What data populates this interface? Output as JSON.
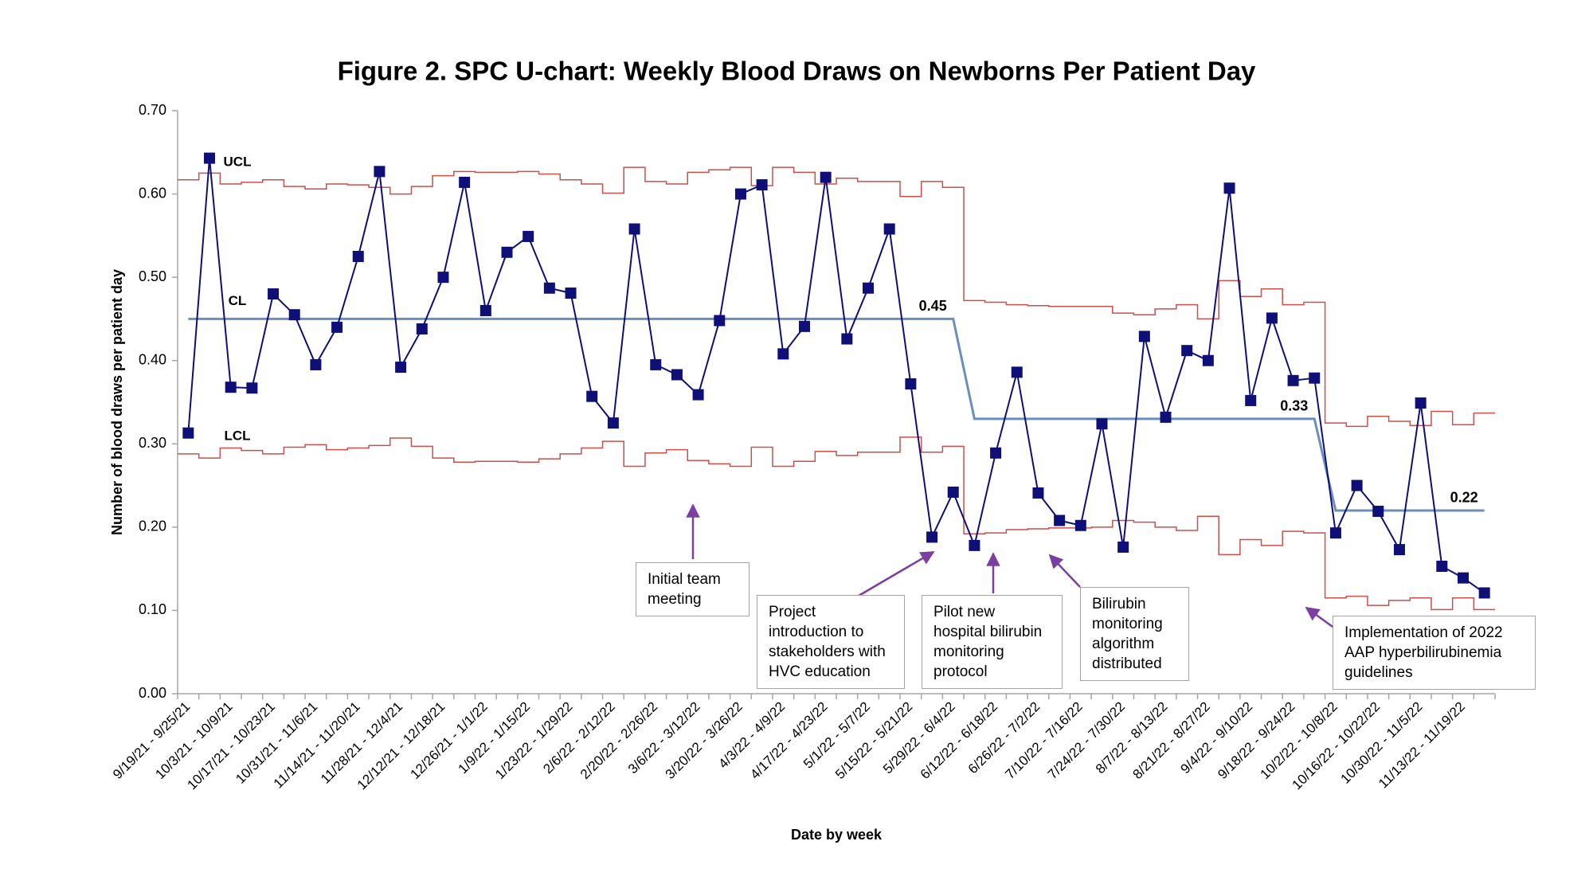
{
  "chart_data": {
    "type": "line",
    "title": "Figure 2. SPC U-chart: Weekly Blood Draws on Newborns Per Patient Day",
    "x_label": "Date by week",
    "y_label": "Number of blood draws per patient day",
    "categories": [
      "9/19/21 - 9/25/21",
      null,
      "10/3/21 - 10/9/21",
      null,
      "10/17/21 - 10/23/21",
      null,
      "10/31/21 - 11/6/21",
      null,
      "11/14/21 - 11/20/21",
      null,
      "11/28/21 - 12/4/21",
      null,
      "12/12/21 - 12/18/21",
      null,
      "12/26/21 - 1/1/22",
      null,
      "1/9/22 - 1/15/22",
      null,
      "1/23/22 - 1/29/22",
      null,
      "2/6/22 - 2/12/22",
      null,
      "2/20/22 - 2/26/22",
      null,
      "3/6/22 - 3/12/22",
      null,
      "3/20/22 - 3/26/22",
      null,
      "4/3/22 - 4/9/22",
      null,
      "4/17/22 - 4/23/22",
      null,
      "5/1/22 - 5/7/22",
      null,
      "5/15/22 - 5/21/22",
      null,
      "5/29/22 - 6/4/22",
      null,
      "6/12/22 - 6/18/22",
      null,
      "6/26/22 - 7/2/22",
      null,
      "7/10/22 - 7/16/22",
      null,
      "7/24/22 - 7/30/22",
      null,
      "8/7/22 - 8/13/22",
      null,
      "8/21/22 - 8/27/22",
      null,
      "9/4/22 - 9/10/22",
      null,
      "9/18/22 - 9/24/22",
      null,
      "10/2/22 - 10/8/22",
      null,
      "10/16/22 - 10/22/22",
      null,
      "10/30/22 - 11/5/22",
      null,
      "11/13/22 - 11/19/22",
      null
    ],
    "ylim": [
      0,
      0.7
    ],
    "yticks": [
      {
        "value": 0,
        "label": "0.00"
      },
      {
        "value": 0.1,
        "label": "0.10"
      },
      {
        "value": 0.2,
        "label": "0.20"
      },
      {
        "value": 0.3,
        "label": "0.30"
      },
      {
        "value": 0.4,
        "label": "0.40"
      },
      {
        "value": 0.5,
        "label": "0.50"
      },
      {
        "value": 0.6,
        "label": "0.60"
      },
      {
        "value": 0.7,
        "label": "0.70"
      }
    ],
    "grid": false,
    "series": [
      {
        "color": "#0f0f78",
        "style": "markers",
        "values": [
          0.313,
          0.643,
          0.368,
          0.367,
          0.48,
          0.455,
          0.395,
          0.44,
          0.525,
          0.627,
          0.392,
          0.438,
          0.5,
          0.614,
          0.46,
          0.53,
          0.549,
          0.487,
          0.481,
          0.357,
          0.325,
          0.558,
          0.395,
          0.383,
          0.359,
          0.448,
          0.6,
          0.611,
          0.408,
          0.441,
          0.62,
          0.426,
          0.487,
          0.558,
          0.372,
          0.188,
          0.242,
          0.178,
          0.289,
          0.386,
          0.241,
          0.208,
          0.202,
          0.324,
          0.176,
          0.429,
          0.332,
          0.412,
          0.4,
          0.607,
          0.352,
          0.451,
          0.376,
          0.379,
          0.193,
          0.25,
          0.219,
          0.173,
          0.349,
          0.153,
          0.139,
          0.121
        ]
      },
      {
        "name": "UCL",
        "color": "#c9504b",
        "style": "step",
        "values": [
          0.617,
          0.625,
          0.612,
          0.614,
          0.617,
          0.609,
          0.606,
          0.612,
          0.611,
          0.608,
          0.6,
          0.609,
          0.622,
          0.627,
          0.626,
          0.626,
          0.627,
          0.624,
          0.617,
          0.612,
          0.601,
          0.632,
          0.615,
          0.612,
          0.626,
          0.629,
          0.632,
          0.61,
          0.632,
          0.626,
          0.612,
          0.619,
          0.615,
          0.615,
          0.597,
          0.615,
          0.608,
          0.472,
          0.47,
          0.467,
          0.466,
          0.465,
          0.465,
          0.465,
          0.457,
          0.455,
          0.462,
          0.467,
          0.45,
          0.496,
          0.477,
          0.486,
          0.467,
          0.47,
          0.325,
          0.321,
          0.333,
          0.327,
          0.322,
          0.339,
          0.323,
          0.337
        ]
      },
      {
        "name": "CL",
        "color": "#6b8fbd",
        "style": "line",
        "segment_labels": [
          0.45,
          0.33,
          0.22
        ],
        "values": [
          0.45,
          0.45,
          0.45,
          0.45,
          0.45,
          0.45,
          0.45,
          0.45,
          0.45,
          0.45,
          0.45,
          0.45,
          0.45,
          0.45,
          0.45,
          0.45,
          0.45,
          0.45,
          0.45,
          0.45,
          0.45,
          0.45,
          0.45,
          0.45,
          0.45,
          0.45,
          0.45,
          0.45,
          0.45,
          0.45,
          0.45,
          0.45,
          0.45,
          0.45,
          0.45,
          0.45,
          0.45,
          0.33,
          0.33,
          0.33,
          0.33,
          0.33,
          0.33,
          0.33,
          0.33,
          0.33,
          0.33,
          0.33,
          0.33,
          0.33,
          0.33,
          0.33,
          0.33,
          0.33,
          0.22,
          0.22,
          0.22,
          0.22,
          0.22,
          0.22,
          0.22,
          0.22
        ]
      },
      {
        "name": "LCL",
        "color": "#c9504b",
        "style": "step",
        "values": [
          0.288,
          0.283,
          0.295,
          0.292,
          0.288,
          0.296,
          0.299,
          0.293,
          0.295,
          0.298,
          0.307,
          0.297,
          0.283,
          0.278,
          0.279,
          0.279,
          0.278,
          0.282,
          0.288,
          0.295,
          0.303,
          0.273,
          0.289,
          0.293,
          0.28,
          0.276,
          0.273,
          0.296,
          0.273,
          0.279,
          0.291,
          0.286,
          0.29,
          0.29,
          0.308,
          0.29,
          0.297,
          0.192,
          0.193,
          0.197,
          0.198,
          0.199,
          0.199,
          0.2,
          0.208,
          0.206,
          0.2,
          0.196,
          0.213,
          0.167,
          0.185,
          0.178,
          0.195,
          0.193,
          0.115,
          0.117,
          0.106,
          0.112,
          0.115,
          0.101,
          0.115,
          0.101
        ]
      }
    ],
    "annotations": [
      {
        "text": "Initial team meeting"
      },
      {
        "text": "Project introduction to stakeholders with HVC education"
      },
      {
        "text": "Pilot new hospital bilirubin monitoring protocol"
      },
      {
        "text": "Bilirubin monitoring algorithm distributed"
      },
      {
        "text": "Implementation of 2022 AAP hyperbilirubinemia guidelines"
      }
    ]
  }
}
